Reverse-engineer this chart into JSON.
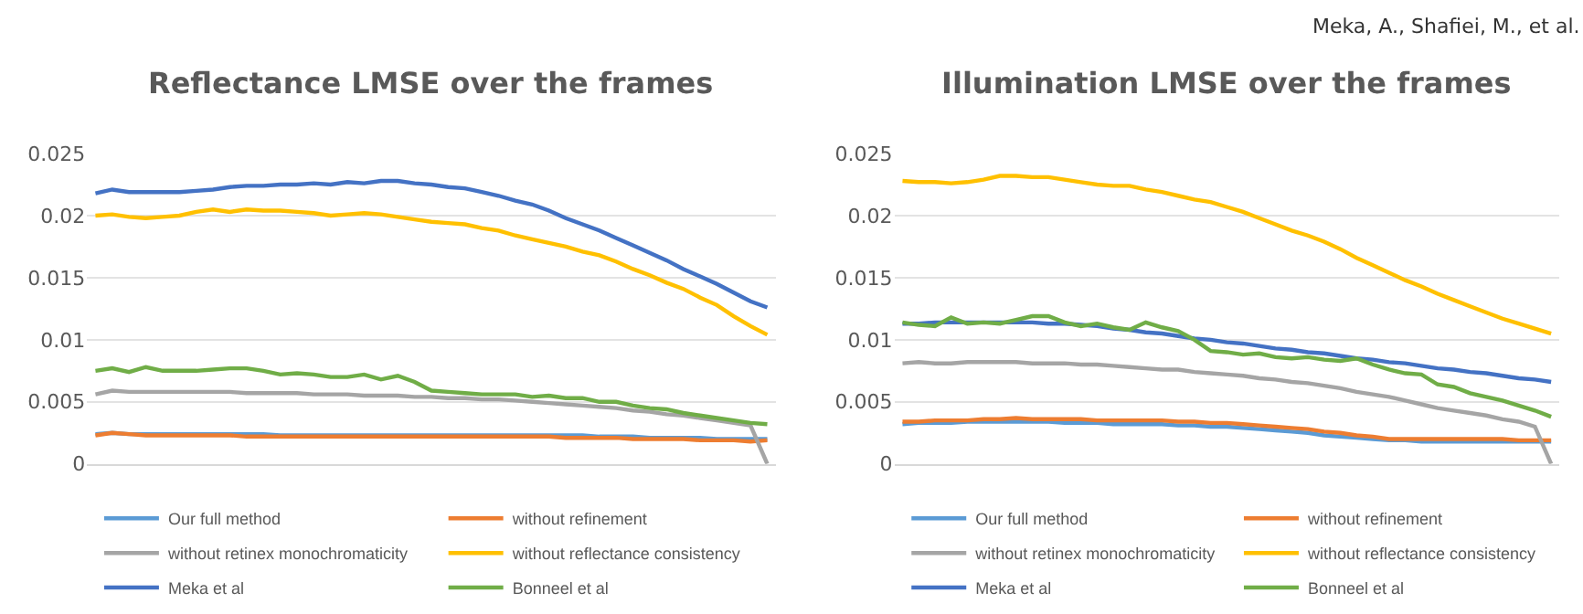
{
  "chart_data": [
    {
      "type": "line",
      "title": "Reflectance LMSE over the frames",
      "tick_labels": "y",
      "grid": "y",
      "legend": "bottom",
      "marker": "none",
      "line_style": "solid",
      "ylim": [
        0,
        0.025
      ],
      "yticks": [
        0,
        0.005,
        0.01,
        0.015,
        0.02,
        0.025
      ],
      "categories": [
        null,
        null,
        null,
        null,
        null,
        null,
        null,
        null,
        null,
        null,
        null,
        null,
        null,
        null,
        null,
        null,
        null,
        null,
        null,
        null,
        null,
        null,
        null,
        null,
        null,
        null,
        null,
        null,
        null,
        null,
        null,
        null,
        null,
        null,
        null,
        null,
        null,
        null,
        null,
        null,
        null
      ],
      "series": [
        {
          "name": "Our full method",
          "color": "#5b9bd5",
          "values": [
            0.0024,
            0.0025,
            0.0024,
            0.0024,
            0.0024,
            0.0024,
            0.0024,
            0.0024,
            0.0024,
            0.0024,
            0.0024,
            0.0023,
            0.0023,
            0.0023,
            0.0023,
            0.0023,
            0.0023,
            0.0023,
            0.0023,
            0.0023,
            0.0023,
            0.0023,
            0.0023,
            0.0023,
            0.0023,
            0.0023,
            0.0023,
            0.0023,
            0.0023,
            0.0023,
            0.0022,
            0.0022,
            0.0022,
            0.0021,
            0.0021,
            0.0021,
            0.0021,
            0.002,
            0.002,
            0.002,
            0.002
          ]
        },
        {
          "name": "without refinement",
          "color": "#ed7d31",
          "values": [
            0.0023,
            0.0025,
            0.0024,
            0.0023,
            0.0023,
            0.0023,
            0.0023,
            0.0023,
            0.0023,
            0.0022,
            0.0022,
            0.0022,
            0.0022,
            0.0022,
            0.0022,
            0.0022,
            0.0022,
            0.0022,
            0.0022,
            0.0022,
            0.0022,
            0.0022,
            0.0022,
            0.0022,
            0.0022,
            0.0022,
            0.0022,
            0.0022,
            0.0021,
            0.0021,
            0.0021,
            0.0021,
            0.002,
            0.002,
            0.002,
            0.002,
            0.0019,
            0.0019,
            0.0019,
            0.0018,
            0.0019
          ]
        },
        {
          "name": "without retinex monochromaticity",
          "color": "#a5a5a5",
          "values": [
            0.0056,
            0.0059,
            0.0058,
            0.0058,
            0.0058,
            0.0058,
            0.0058,
            0.0058,
            0.0058,
            0.0057,
            0.0057,
            0.0057,
            0.0057,
            0.0056,
            0.0056,
            0.0056,
            0.0055,
            0.0055,
            0.0055,
            0.0054,
            0.0054,
            0.0053,
            0.0053,
            0.0052,
            0.0052,
            0.0051,
            0.005,
            0.0049,
            0.0048,
            0.0047,
            0.0046,
            0.0045,
            0.0043,
            0.0042,
            0.004,
            0.0039,
            0.0037,
            0.0035,
            0.0033,
            0.0031,
            0
          ]
        },
        {
          "name": "without reflectance consistency",
          "color": "#ffc000",
          "values": [
            0.02,
            0.0201,
            0.0199,
            0.0198,
            0.0199,
            0.02,
            0.0203,
            0.0205,
            0.0203,
            0.0205,
            0.0204,
            0.0204,
            0.0203,
            0.0202,
            0.02,
            0.0201,
            0.0202,
            0.0201,
            0.0199,
            0.0197,
            0.0195,
            0.0194,
            0.0193,
            0.019,
            0.0188,
            0.0184,
            0.0181,
            0.0178,
            0.0175,
            0.0171,
            0.0168,
            0.0163,
            0.0157,
            0.0152,
            0.0146,
            0.0141,
            0.0134,
            0.0128,
            0.0119,
            0.0111,
            0.0104
          ]
        },
        {
          "name": "Meka et al",
          "color": "#4472c4",
          "values": [
            0.0218,
            0.0221,
            0.0219,
            0.0219,
            0.0219,
            0.0219,
            0.022,
            0.0221,
            0.0223,
            0.0224,
            0.0224,
            0.0225,
            0.0225,
            0.0226,
            0.0225,
            0.0227,
            0.0226,
            0.0228,
            0.0228,
            0.0226,
            0.0225,
            0.0223,
            0.0222,
            0.0219,
            0.0216,
            0.0212,
            0.0209,
            0.0204,
            0.0198,
            0.0193,
            0.0188,
            0.0182,
            0.0176,
            0.017,
            0.0164,
            0.0157,
            0.0151,
            0.0145,
            0.0138,
            0.0131,
            0.0126
          ]
        },
        {
          "name": "Bonneel et al",
          "color": "#70ad47",
          "values": [
            0.0075,
            0.0077,
            0.0074,
            0.0078,
            0.0075,
            0.0075,
            0.0075,
            0.0076,
            0.0077,
            0.0077,
            0.0075,
            0.0072,
            0.0073,
            0.0072,
            0.007,
            0.007,
            0.0072,
            0.0068,
            0.0071,
            0.0066,
            0.0059,
            0.0058,
            0.0057,
            0.0056,
            0.0056,
            0.0056,
            0.0054,
            0.0055,
            0.0053,
            0.0053,
            0.005,
            0.005,
            0.0047,
            0.0045,
            0.0044,
            0.0041,
            0.0039,
            0.0037,
            0.0035,
            0.0033,
            0.0032
          ]
        }
      ]
    },
    {
      "type": "line",
      "title": "Illumination LMSE over the frames",
      "tick_labels": "y",
      "grid": "y",
      "legend": "bottom",
      "marker": "none",
      "line_style": "solid",
      "annotations": [
        "Meka, A., Shafiei, M., et al."
      ],
      "ylim": [
        0,
        0.025
      ],
      "yticks": [
        0,
        0.005,
        0.01,
        0.015,
        0.02,
        0.025
      ],
      "categories": [
        null,
        null,
        null,
        null,
        null,
        null,
        null,
        null,
        null,
        null,
        null,
        null,
        null,
        null,
        null,
        null,
        null,
        null,
        null,
        null,
        null,
        null,
        null,
        null,
        null,
        null,
        null,
        null,
        null,
        null,
        null,
        null,
        null,
        null,
        null,
        null,
        null,
        null,
        null,
        null,
        null
      ],
      "series": [
        {
          "name": "Our full method",
          "color": "#5b9bd5",
          "values": [
            0.0032,
            0.0033,
            0.0033,
            0.0033,
            0.0034,
            0.0034,
            0.0034,
            0.0034,
            0.0034,
            0.0034,
            0.0033,
            0.0033,
            0.0033,
            0.0032,
            0.0032,
            0.0032,
            0.0032,
            0.0031,
            0.0031,
            0.003,
            0.003,
            0.0029,
            0.0028,
            0.0027,
            0.0026,
            0.0025,
            0.0023,
            0.0022,
            0.0021,
            0.002,
            0.0019,
            0.0019,
            0.0018,
            0.0018,
            0.0018,
            0.0018,
            0.0018,
            0.0018,
            0.0018,
            0.0018,
            0.0018
          ]
        },
        {
          "name": "without refinement",
          "color": "#ed7d31",
          "values": [
            0.0034,
            0.0034,
            0.0035,
            0.0035,
            0.0035,
            0.0036,
            0.0036,
            0.0037,
            0.0036,
            0.0036,
            0.0036,
            0.0036,
            0.0035,
            0.0035,
            0.0035,
            0.0035,
            0.0035,
            0.0034,
            0.0034,
            0.0033,
            0.0033,
            0.0032,
            0.0031,
            0.003,
            0.0029,
            0.0028,
            0.0026,
            0.0025,
            0.0023,
            0.0022,
            0.002,
            0.002,
            0.002,
            0.002,
            0.002,
            0.002,
            0.002,
            0.002,
            0.0019,
            0.0019,
            0.0019
          ]
        },
        {
          "name": "without retinex monochromaticity",
          "color": "#a5a5a5",
          "values": [
            0.0081,
            0.0082,
            0.0081,
            0.0081,
            0.0082,
            0.0082,
            0.0082,
            0.0082,
            0.0081,
            0.0081,
            0.0081,
            0.008,
            0.008,
            0.0079,
            0.0078,
            0.0077,
            0.0076,
            0.0076,
            0.0074,
            0.0073,
            0.0072,
            0.0071,
            0.0069,
            0.0068,
            0.0066,
            0.0065,
            0.0063,
            0.0061,
            0.0058,
            0.0056,
            0.0054,
            0.0051,
            0.0048,
            0.0045,
            0.0043,
            0.0041,
            0.0039,
            0.0036,
            0.0034,
            0.003,
            0
          ]
        },
        {
          "name": "without reflectance consistency",
          "color": "#ffc000",
          "values": [
            0.0228,
            0.0227,
            0.0227,
            0.0226,
            0.0227,
            0.0229,
            0.0232,
            0.0232,
            0.0231,
            0.0231,
            0.0229,
            0.0227,
            0.0225,
            0.0224,
            0.0224,
            0.0221,
            0.0219,
            0.0216,
            0.0213,
            0.0211,
            0.0207,
            0.0203,
            0.0198,
            0.0193,
            0.0188,
            0.0184,
            0.0179,
            0.0173,
            0.0166,
            0.016,
            0.0154,
            0.0148,
            0.0143,
            0.0137,
            0.0132,
            0.0127,
            0.0122,
            0.0117,
            0.0113,
            0.0109,
            0.0105
          ]
        },
        {
          "name": "Meka et al",
          "color": "#4472c4",
          "values": [
            0.0113,
            0.0113,
            0.0114,
            0.0114,
            0.0114,
            0.0114,
            0.0114,
            0.0114,
            0.0114,
            0.0113,
            0.0113,
            0.0112,
            0.0111,
            0.0109,
            0.0108,
            0.0106,
            0.0105,
            0.0103,
            0.0101,
            0.01,
            0.0098,
            0.0097,
            0.0095,
            0.0093,
            0.0092,
            0.009,
            0.0089,
            0.0087,
            0.0085,
            0.0084,
            0.0082,
            0.0081,
            0.0079,
            0.0077,
            0.0076,
            0.0074,
            0.0073,
            0.0071,
            0.0069,
            0.0068,
            0.0066
          ]
        },
        {
          "name": "Bonneel et al",
          "color": "#70ad47",
          "values": [
            0.0114,
            0.0112,
            0.0111,
            0.0118,
            0.0113,
            0.0114,
            0.0113,
            0.0116,
            0.0119,
            0.0119,
            0.0114,
            0.0111,
            0.0113,
            0.011,
            0.0108,
            0.0114,
            0.011,
            0.0107,
            0.01,
            0.0091,
            0.009,
            0.0088,
            0.0089,
            0.0086,
            0.0085,
            0.0086,
            0.0084,
            0.0083,
            0.0085,
            0.008,
            0.0076,
            0.0073,
            0.0072,
            0.0064,
            0.0062,
            0.0057,
            0.0054,
            0.0051,
            0.0047,
            0.0043,
            0.0038
          ]
        }
      ]
    }
  ]
}
